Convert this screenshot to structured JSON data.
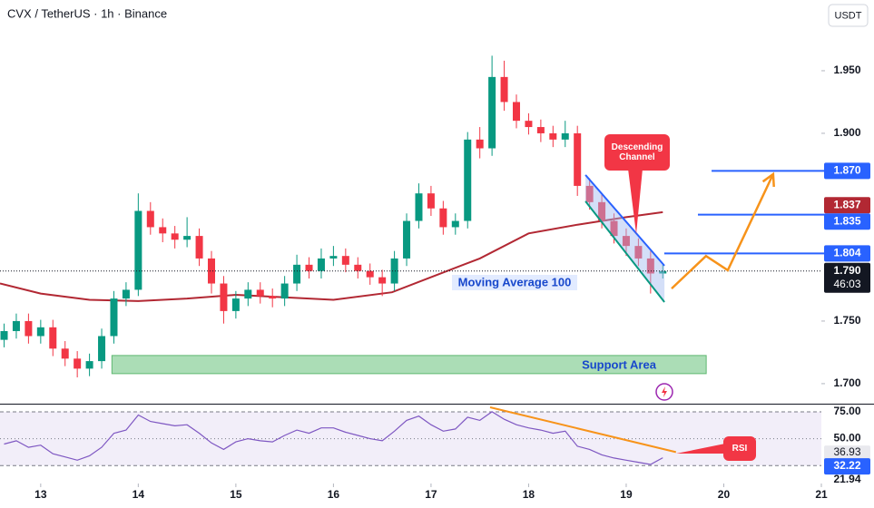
{
  "chart_data": {
    "type": "candlestick",
    "title": "CVX / TetherUS · 1h · Binance",
    "currency": "USDT",
    "up_color": "#089981",
    "down_color": "#f23645",
    "x": [
      12.625,
      12.75,
      12.875,
      13.0,
      13.125,
      13.25,
      13.375,
      13.5,
      13.625,
      13.75,
      13.875,
      14.0,
      14.125,
      14.25,
      14.375,
      14.5,
      14.625,
      14.75,
      14.875,
      15.0,
      15.125,
      15.25,
      15.375,
      15.5,
      15.625,
      15.75,
      15.875,
      16.0,
      16.125,
      16.25,
      16.375,
      16.5,
      16.625,
      16.75,
      16.875,
      17.0,
      17.125,
      17.25,
      17.375,
      17.5,
      17.625,
      17.75,
      17.875,
      18.0,
      18.125,
      18.25,
      18.375,
      18.5,
      18.625,
      18.75,
      18.875,
      19.0,
      19.125,
      19.25,
      19.375
    ],
    "open": [
      1.735,
      1.742,
      1.75,
      1.738,
      1.745,
      1.728,
      1.72,
      1.712,
      1.718,
      1.738,
      1.768,
      1.775,
      1.838,
      1.825,
      1.82,
      1.815,
      1.818,
      1.8,
      1.78,
      1.758,
      1.768,
      1.775,
      1.77,
      1.768,
      1.78,
      1.795,
      1.79,
      1.8,
      1.802,
      1.795,
      1.79,
      1.785,
      1.78,
      1.8,
      1.83,
      1.852,
      1.84,
      1.825,
      1.83,
      1.895,
      1.888,
      1.945,
      1.925,
      1.91,
      1.905,
      1.9,
      1.895,
      1.9,
      1.858,
      1.845,
      1.83,
      1.818,
      1.81,
      1.8,
      1.788
    ],
    "high": [
      1.748,
      1.756,
      1.756,
      1.751,
      1.751,
      1.734,
      1.726,
      1.724,
      1.744,
      1.774,
      1.781,
      1.852,
      1.845,
      1.832,
      1.826,
      1.833,
      1.824,
      1.806,
      1.786,
      1.774,
      1.781,
      1.781,
      1.776,
      1.786,
      1.803,
      1.801,
      1.808,
      1.81,
      1.808,
      1.801,
      1.796,
      1.791,
      1.806,
      1.836,
      1.86,
      1.858,
      1.846,
      1.836,
      1.901,
      1.905,
      1.962,
      1.958,
      1.931,
      1.916,
      1.911,
      1.906,
      1.91,
      1.906,
      1.864,
      1.851,
      1.836,
      1.824,
      1.816,
      1.806,
      1.795
    ],
    "low": [
      1.729,
      1.736,
      1.732,
      1.732,
      1.722,
      1.714,
      1.705,
      1.706,
      1.712,
      1.732,
      1.762,
      1.77,
      1.819,
      1.813,
      1.808,
      1.809,
      1.794,
      1.772,
      1.748,
      1.752,
      1.762,
      1.764,
      1.761,
      1.762,
      1.774,
      1.784,
      1.784,
      1.794,
      1.789,
      1.784,
      1.779,
      1.77,
      1.774,
      1.794,
      1.824,
      1.834,
      1.819,
      1.819,
      1.824,
      1.88,
      1.882,
      1.918,
      1.904,
      1.899,
      1.893,
      1.889,
      1.889,
      1.85,
      1.839,
      1.824,
      1.812,
      1.802,
      1.794,
      1.772,
      1.784
    ],
    "close": [
      1.742,
      1.75,
      1.738,
      1.745,
      1.728,
      1.72,
      1.712,
      1.718,
      1.738,
      1.768,
      1.775,
      1.838,
      1.825,
      1.82,
      1.815,
      1.818,
      1.8,
      1.78,
      1.758,
      1.768,
      1.775,
      1.77,
      1.768,
      1.78,
      1.795,
      1.79,
      1.8,
      1.802,
      1.795,
      1.79,
      1.785,
      1.78,
      1.8,
      1.83,
      1.852,
      1.84,
      1.825,
      1.83,
      1.895,
      1.888,
      1.945,
      1.925,
      1.91,
      1.905,
      1.9,
      1.895,
      1.9,
      1.858,
      1.845,
      1.83,
      1.818,
      1.81,
      1.8,
      1.788,
      1.79
    ],
    "xlim": [
      12.583,
      21.0
    ],
    "xticks": [
      13,
      14,
      15,
      16,
      17,
      18,
      19,
      20,
      21
    ],
    "ylim": [
      1.684,
      2.0065
    ],
    "yticks": [
      {
        "value": 1.7,
        "label": "1.700"
      },
      {
        "value": 1.75,
        "label": "1.750"
      },
      {
        "value": 1.9,
        "label": "1.900"
      },
      {
        "value": 1.95,
        "label": "1.950"
      }
    ],
    "moving_average": {
      "name": "Moving Average 100",
      "color": "#b22833",
      "x": [
        12.583,
        13.0,
        13.5,
        14.0,
        14.5,
        15.0,
        15.5,
        16.0,
        16.6,
        17.0,
        17.5,
        18.0,
        18.5,
        19.0,
        19.375
      ],
      "values": [
        1.78,
        1.772,
        1.767,
        1.766,
        1.768,
        1.771,
        1.769,
        1.767,
        1.773,
        1.785,
        1.8,
        1.82,
        1.827,
        1.833,
        1.837
      ]
    },
    "levels": [
      {
        "value": 1.87,
        "label": "1.870",
        "x_start": 19.875,
        "color": "#2962ff"
      },
      {
        "value": 1.835,
        "label": "1.835",
        "x_start": 19.735,
        "color": "#2962ff"
      },
      {
        "value": 1.804,
        "label": "1.804",
        "x_start": 19.39,
        "color": "#2962ff"
      }
    ],
    "last_price": {
      "value": 1.79,
      "label": "1.790",
      "countdown": "46:03",
      "color": "#131722"
    },
    "support_area": {
      "label": "Support Area",
      "x": [
        13.73,
        19.82
      ],
      "range": [
        1.708,
        1.7225
      ],
      "color": "#8fd19e"
    },
    "channel": {
      "label": "Descending Channel",
      "upper": {
        "x": [
          18.583,
          19.392
        ],
        "values": [
          1.8667,
          1.7942
        ],
        "color": "#2962ff"
      },
      "lower": {
        "x": [
          18.583,
          19.392
        ],
        "values": [
          1.8457,
          1.7652
        ],
        "color": "#089981"
      }
    },
    "projection": {
      "x": [
        19.465,
        19.818,
        20.041,
        20.506
      ],
      "values": [
        1.776,
        1.802,
        1.7906,
        1.8674
      ],
      "color": "#f7931a"
    },
    "rsi": {
      "name": "RSI",
      "color": "#7e57c2",
      "ylim": [
        8.3,
        81.7
      ],
      "yticks": [
        {
          "value": 75,
          "label": "75.00"
        },
        {
          "value": 50,
          "label": "50.00"
        },
        21.94
      ],
      "levels": [
        75,
        50,
        25
      ],
      "values": [
        45,
        48,
        42,
        44,
        36,
        33,
        30,
        34,
        42,
        55,
        58,
        72,
        66,
        64,
        62,
        63,
        55,
        46,
        40,
        47,
        50,
        48,
        47,
        53,
        58,
        55,
        60,
        60,
        56,
        53,
        50,
        48,
        57,
        67,
        71,
        63,
        57,
        59,
        70,
        67,
        75,
        68,
        63,
        60,
        58,
        55,
        57,
        43,
        40,
        35,
        32,
        30,
        28,
        26,
        32.22
      ],
      "ma_value": {
        "value": 36.93,
        "label": "36.93"
      },
      "divergence": {
        "x": [
          17.605,
          19.51
        ],
        "values": [
          79.2,
          37.5
        ],
        "color": "#f7931a"
      }
    }
  }
}
